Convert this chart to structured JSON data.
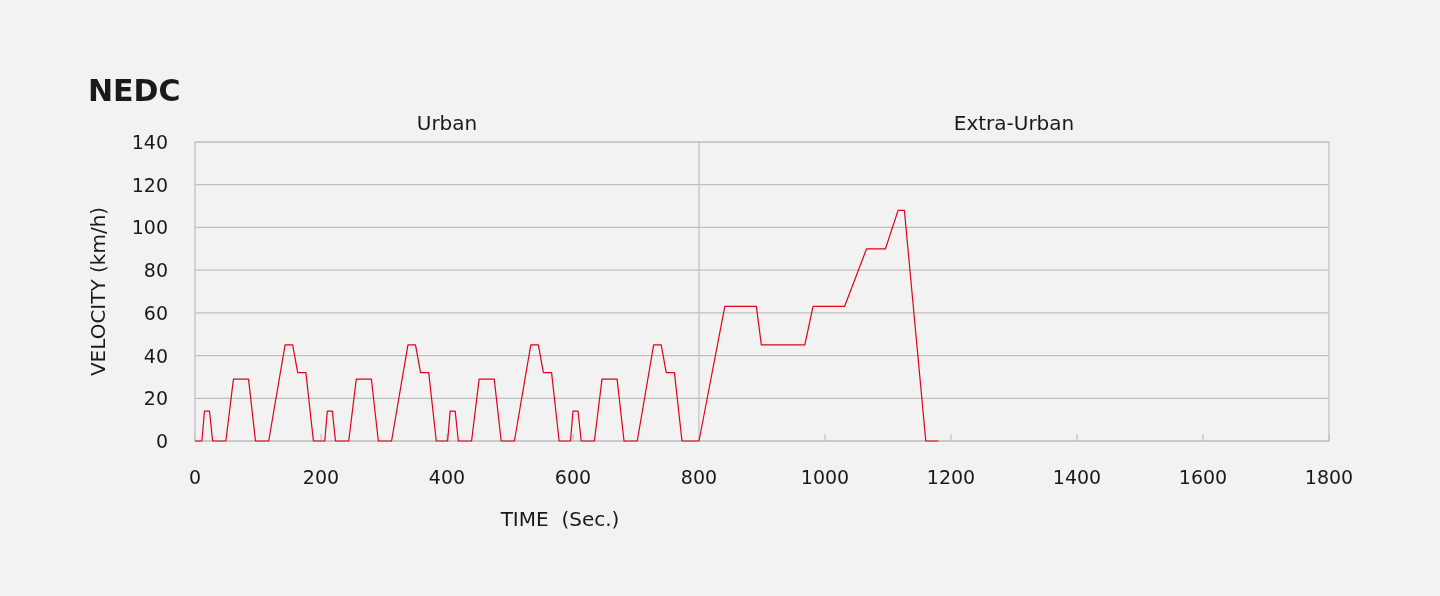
{
  "chart_data": {
    "type": "line",
    "title": "NEDC",
    "xlabel": "TIME  (Sec.)",
    "ylabel": "VELOCITY (km/h)",
    "xlim": [
      0,
      1800
    ],
    "xticks": [
      0,
      200,
      400,
      600,
      800,
      1000,
      1200,
      1400,
      1600,
      1800
    ],
    "ylim": [
      0,
      140
    ],
    "yticks": [
      0,
      20,
      40,
      60,
      80,
      100,
      120,
      140
    ],
    "grid": "y",
    "marker": "none",
    "line_style": "solid",
    "ref_lines": [
      {
        "axis": "x",
        "value": 800,
        "color": "#c0c0c0"
      }
    ],
    "annotations": [
      "Urban",
      "Extra-Urban"
    ],
    "series": [
      {
        "color": "#e2001a",
        "x": [
          0,
          11,
          15,
          23,
          28,
          49,
          61,
          85,
          96,
          117,
          143,
          155,
          163,
          176,
          188,
          195,
          206,
          210,
          218,
          223,
          244,
          256,
          280,
          291,
          312,
          338,
          350,
          358,
          371,
          383,
          390,
          401,
          405,
          413,
          418,
          439,
          451,
          475,
          486,
          507,
          533,
          545,
          553,
          566,
          578,
          585,
          596,
          600,
          608,
          613,
          634,
          646,
          670,
          681,
          702,
          728,
          740,
          748,
          761,
          773,
          800,
          841,
          891,
          899,
          968,
          981,
          1031,
          1066,
          1096,
          1116,
          1126,
          1160,
          1180
        ],
        "values": [
          0,
          0,
          14,
          14,
          0,
          0,
          29,
          29,
          0,
          0,
          45,
          45,
          32,
          32,
          0,
          0,
          0,
          14,
          14,
          0,
          0,
          29,
          29,
          0,
          0,
          45,
          45,
          32,
          32,
          0,
          0,
          0,
          14,
          14,
          0,
          0,
          29,
          29,
          0,
          0,
          45,
          45,
          32,
          32,
          0,
          0,
          0,
          14,
          14,
          0,
          0,
          29,
          29,
          0,
          0,
          45,
          45,
          32,
          32,
          0,
          0,
          63,
          63,
          45,
          45,
          63,
          63,
          90,
          90,
          108,
          108,
          0,
          0
        ]
      }
    ]
  }
}
